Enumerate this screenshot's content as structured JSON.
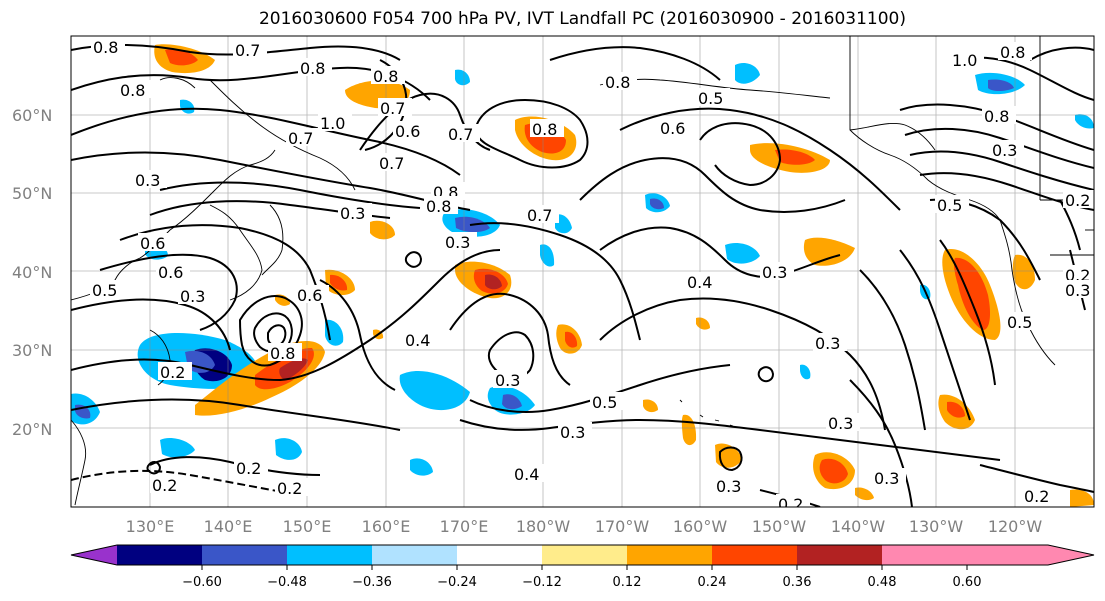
{
  "title": "2016030600 F054 700 hPa PV, IVT Landfall PC (2016030900 - 2016031100)",
  "map": {
    "lat_labels": [
      "60°N",
      "50°N",
      "40°N",
      "30°N",
      "20°N"
    ],
    "lon_labels": [
      "130°E",
      "140°E",
      "150°E",
      "160°E",
      "170°E",
      "180°W",
      "170°W",
      "160°W",
      "150°W",
      "140°W",
      "130°W",
      "120°W"
    ],
    "contour_labels": [
      "0.8",
      "0.7",
      "0.8",
      "0.8",
      "1.0",
      "0.8",
      "0.7",
      "0.6",
      "0.7",
      "0.8",
      "0.8",
      "0.5",
      "0.6",
      "0.7",
      "0.8",
      "0.3",
      "0.3",
      "0.8",
      "0.7",
      "0.6",
      "0.7",
      "0.6",
      "0.3",
      "0.4",
      "0.5",
      "0.3",
      "0.6",
      "0.4",
      "0.3",
      "0.3",
      "0.2",
      "0.8",
      "0.5",
      "0.3",
      "0.3",
      "0.2",
      "0.4",
      "0.2",
      "0.3",
      "0.2",
      "0.3",
      "0.2",
      "0.3",
      "0.2",
      "0.2",
      "1.0",
      "0.8",
      "0.8",
      "0.3",
      "0.5",
      "0.5",
      "0.3",
      "0.2"
    ]
  },
  "colorbar": {
    "tick_labels": [
      "−0.60",
      "−0.48",
      "−0.36",
      "−0.24",
      "−0.12",
      "0.12",
      "0.24",
      "0.36",
      "0.48",
      "0.60"
    ],
    "colors": [
      "#9932cc",
      "#000080",
      "#3a56c8",
      "#00bfff",
      "#b0e2ff",
      "#ffffff",
      "#ffec8b",
      "#ffa500",
      "#ff4500",
      "#b22222",
      "#ff88b0"
    ]
  }
}
